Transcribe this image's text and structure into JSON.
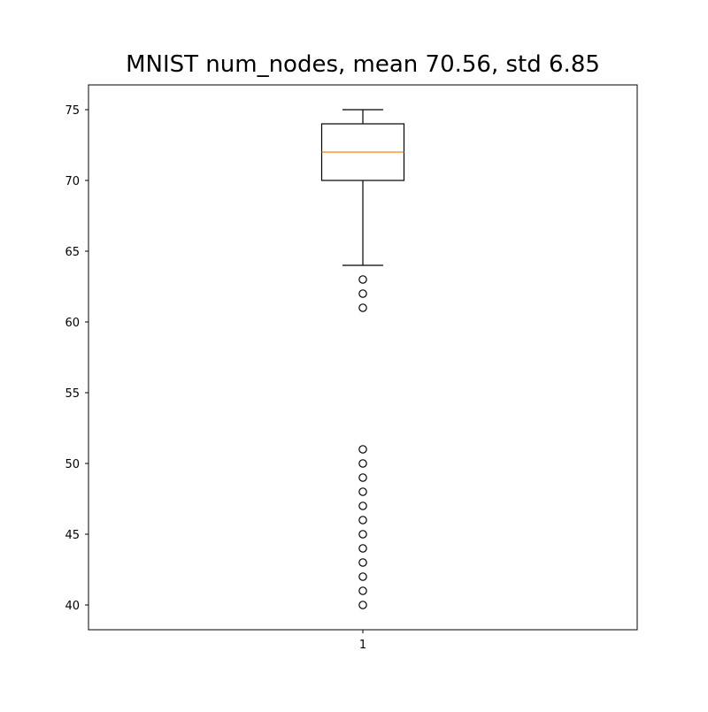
{
  "chart_data": {
    "type": "box",
    "title": "MNIST num_nodes, mean 70.56, std 6.85",
    "xlabel": "",
    "ylabel": "",
    "categories": [
      "1"
    ],
    "ylim": [
      38.25,
      76.75
    ],
    "yticks": [
      40,
      45,
      50,
      55,
      60,
      65,
      70,
      75
    ],
    "grid": false,
    "boxes": [
      {
        "category": "1",
        "whisker_low": 64,
        "q1": 70,
        "median": 72,
        "q3": 74,
        "whisker_high": 75,
        "outliers": [
          63,
          62,
          61,
          51,
          50,
          49,
          48,
          47,
          46,
          45,
          44,
          43,
          42,
          41,
          40
        ]
      }
    ],
    "colors": {
      "box": "#000000",
      "median": "#ff7f0e",
      "outlier": "#000000"
    }
  }
}
